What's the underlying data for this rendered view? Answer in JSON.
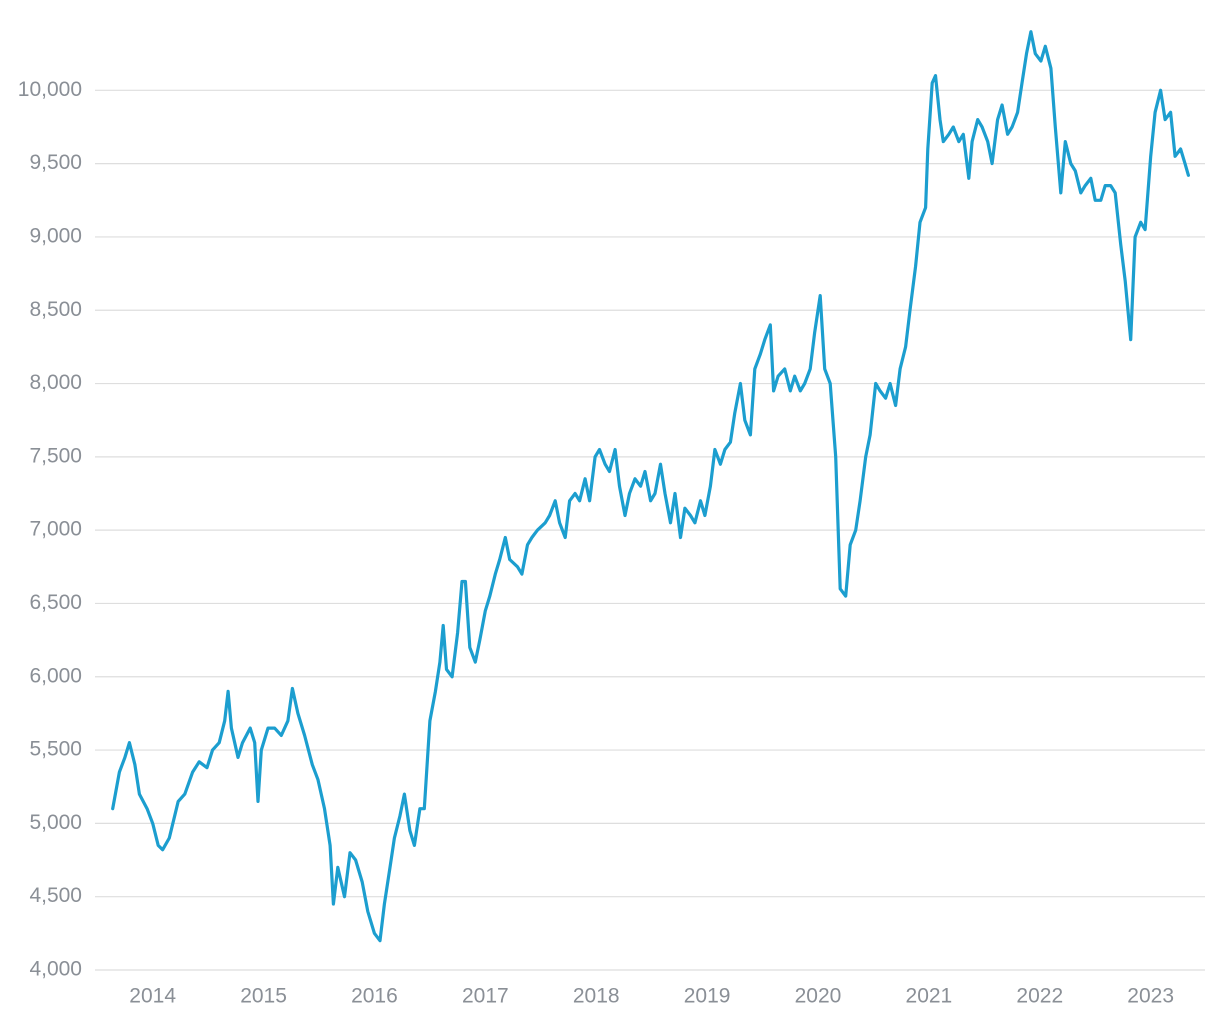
{
  "chart_data": {
    "type": "line",
    "x": [
      2013.64,
      2013.7,
      2013.75,
      2013.79,
      2013.84,
      2013.88,
      2013.95,
      2014.0,
      2014.05,
      2014.09,
      2014.15,
      2014.23,
      2014.29,
      2014.36,
      2014.42,
      2014.49,
      2014.54,
      2014.6,
      2014.65,
      2014.68,
      2014.71,
      2014.77,
      2014.81,
      2014.88,
      2014.92,
      2014.95,
      2014.98,
      2015.04,
      2015.1,
      2015.16,
      2015.22,
      2015.26,
      2015.31,
      2015.37,
      2015.44,
      2015.49,
      2015.55,
      2015.6,
      2015.63,
      2015.67,
      2015.73,
      2015.78,
      2015.83,
      2015.89,
      2015.94,
      2016.0,
      2016.05,
      2016.09,
      2016.14,
      2016.18,
      2016.23,
      2016.27,
      2016.32,
      2016.36,
      2016.41,
      2016.45,
      2016.5,
      2016.55,
      2016.59,
      2016.62,
      2016.65,
      2016.7,
      2016.75,
      2016.79,
      2016.82,
      2016.86,
      2016.91,
      2016.95,
      2017.0,
      2017.04,
      2017.09,
      2017.13,
      2017.18,
      2017.22,
      2017.29,
      2017.33,
      2017.38,
      2017.42,
      2017.47,
      2017.54,
      2017.58,
      2017.63,
      2017.67,
      2017.72,
      2017.76,
      2017.81,
      2017.85,
      2017.9,
      2017.94,
      2017.99,
      2018.03,
      2018.08,
      2018.12,
      2018.17,
      2018.21,
      2018.26,
      2018.3,
      2018.35,
      2018.4,
      2018.44,
      2018.49,
      2018.53,
      2018.58,
      2018.62,
      2018.67,
      2018.71,
      2018.76,
      2018.8,
      2018.85,
      2018.89,
      2018.94,
      2018.98,
      2019.03,
      2019.07,
      2019.12,
      2019.16,
      2019.21,
      2019.25,
      2019.3,
      2019.34,
      2019.39,
      2019.43,
      2019.48,
      2019.52,
      2019.57,
      2019.6,
      2019.64,
      2019.7,
      2019.75,
      2019.79,
      2019.84,
      2019.88,
      2019.93,
      2019.97,
      2020.02,
      2020.06,
      2020.11,
      2020.16,
      2020.2,
      2020.25,
      2020.29,
      2020.34,
      2020.38,
      2020.43,
      2020.47,
      2020.52,
      2020.56,
      2020.61,
      2020.65,
      2020.7,
      2020.74,
      2020.79,
      2020.83,
      2020.88,
      2020.92,
      2020.97,
      2020.99,
      2021.03,
      2021.06,
      2021.1,
      2021.13,
      2021.18,
      2021.22,
      2021.27,
      2021.31,
      2021.36,
      2021.39,
      2021.44,
      2021.48,
      2021.53,
      2021.57,
      2021.62,
      2021.66,
      2021.71,
      2021.75,
      2021.8,
      2021.84,
      2021.88,
      2021.92,
      2021.96,
      2022.01,
      2022.05,
      2022.1,
      2022.14,
      2022.19,
      2022.23,
      2022.28,
      2022.32,
      2022.37,
      2022.41,
      2022.46,
      2022.5,
      2022.55,
      2022.59,
      2022.64,
      2022.68,
      2022.73,
      2022.77,
      2022.82,
      2022.86,
      2022.91,
      2022.95,
      2023.0,
      2023.04,
      2023.09,
      2023.13,
      2023.18,
      2023.22,
      2023.27,
      2023.31,
      2023.34
    ],
    "series": [
      {
        "color": "#1c9ecf",
        "values": [
          5100,
          5350,
          5450,
          5550,
          5400,
          5200,
          5100,
          5000,
          4850,
          4820,
          4900,
          5150,
          5200,
          5350,
          5420,
          5380,
          5500,
          5550,
          5700,
          5900,
          5650,
          5450,
          5550,
          5650,
          5550,
          5150,
          5500,
          5650,
          5650,
          5600,
          5700,
          5920,
          5750,
          5600,
          5400,
          5300,
          5100,
          4850,
          4450,
          4700,
          4500,
          4800,
          4750,
          4600,
          4400,
          4250,
          4200,
          4450,
          4700,
          4900,
          5050,
          5200,
          4950,
          4850,
          5100,
          5100,
          5700,
          5900,
          6100,
          6350,
          6050,
          6000,
          6300,
          6650,
          6650,
          6200,
          6100,
          6250,
          6450,
          6550,
          6700,
          6800,
          6950,
          6800,
          6750,
          6700,
          6900,
          6950,
          7000,
          7050,
          7100,
          7200,
          7050,
          6950,
          7200,
          7250,
          7200,
          7350,
          7200,
          7500,
          7550,
          7450,
          7400,
          7550,
          7300,
          7100,
          7250,
          7350,
          7300,
          7400,
          7200,
          7250,
          7450,
          7250,
          7050,
          7250,
          6950,
          7150,
          7100,
          7050,
          7200,
          7100,
          7300,
          7550,
          7450,
          7550,
          7600,
          7800,
          8000,
          7750,
          7650,
          8100,
          8200,
          8300,
          8400,
          7950,
          8050,
          8100,
          7950,
          8050,
          7950,
          8000,
          8100,
          8350,
          8600,
          8100,
          8000,
          7500,
          6600,
          6550,
          6900,
          7000,
          7200,
          7500,
          7650,
          8000,
          7950,
          7900,
          8000,
          7850,
          8100,
          8250,
          8500,
          8800,
          9100,
          9200,
          9600,
          10050,
          10100,
          9800,
          9650,
          9700,
          9750,
          9650,
          9700,
          9400,
          9650,
          9800,
          9750,
          9650,
          9500,
          9800,
          9900,
          9700,
          9750,
          9850,
          10050,
          10250,
          10400,
          10250,
          10200,
          10300,
          10150,
          9750,
          9300,
          9650,
          9500,
          9450,
          9300,
          9350,
          9400,
          9250,
          9250,
          9350,
          9350,
          9300,
          8950,
          8700,
          8300,
          9000,
          9100,
          9050,
          9550,
          9850,
          10000,
          9800,
          9850,
          9550,
          9600,
          9500,
          9420
        ]
      }
    ],
    "xlim": [
      2013.48,
      2023.49
    ],
    "xticks": [
      2014,
      2015,
      2016,
      2017,
      2018,
      2019,
      2020,
      2021,
      2022,
      2023
    ],
    "ylim": [
      4000,
      10500
    ],
    "yticks": [
      {
        "value": 4000,
        "label": "4,000"
      },
      {
        "value": 4500,
        "label": "4,500"
      },
      {
        "value": 5000,
        "label": "5,000"
      },
      {
        "value": 5500,
        "label": "5,500"
      },
      {
        "value": 6000,
        "label": "6,000"
      },
      {
        "value": 6500,
        "label": "6,500"
      },
      {
        "value": 7000,
        "label": "7,000"
      },
      {
        "value": 7500,
        "label": "7,500"
      },
      {
        "value": 8000,
        "label": "8,000"
      },
      {
        "value": 8500,
        "label": "8,500"
      },
      {
        "value": 9000,
        "label": "9,000"
      },
      {
        "value": 9500,
        "label": "9,500"
      },
      {
        "value": 10000,
        "label": "10,000"
      }
    ],
    "grid": true
  }
}
